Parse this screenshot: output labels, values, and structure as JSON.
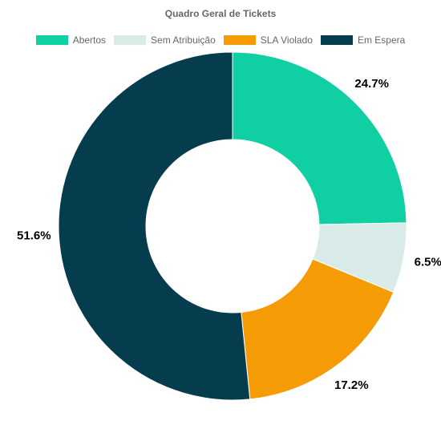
{
  "chart_data": {
    "type": "pie",
    "variant": "doughnut",
    "title": "Quadro Geral de Tickets",
    "categories": [
      "Abertos",
      "Sem Atribuição",
      "SLA Violado",
      "Em Espera"
    ],
    "values": [
      24.7,
      6.5,
      17.2,
      51.6
    ],
    "value_labels": [
      "24.7%",
      "6.5%",
      "17.2%",
      "51.6%"
    ],
    "colors": [
      "#10cfa2",
      "#d9ebe8",
      "#f59b05",
      "#053d4f"
    ],
    "legend": "top"
  }
}
